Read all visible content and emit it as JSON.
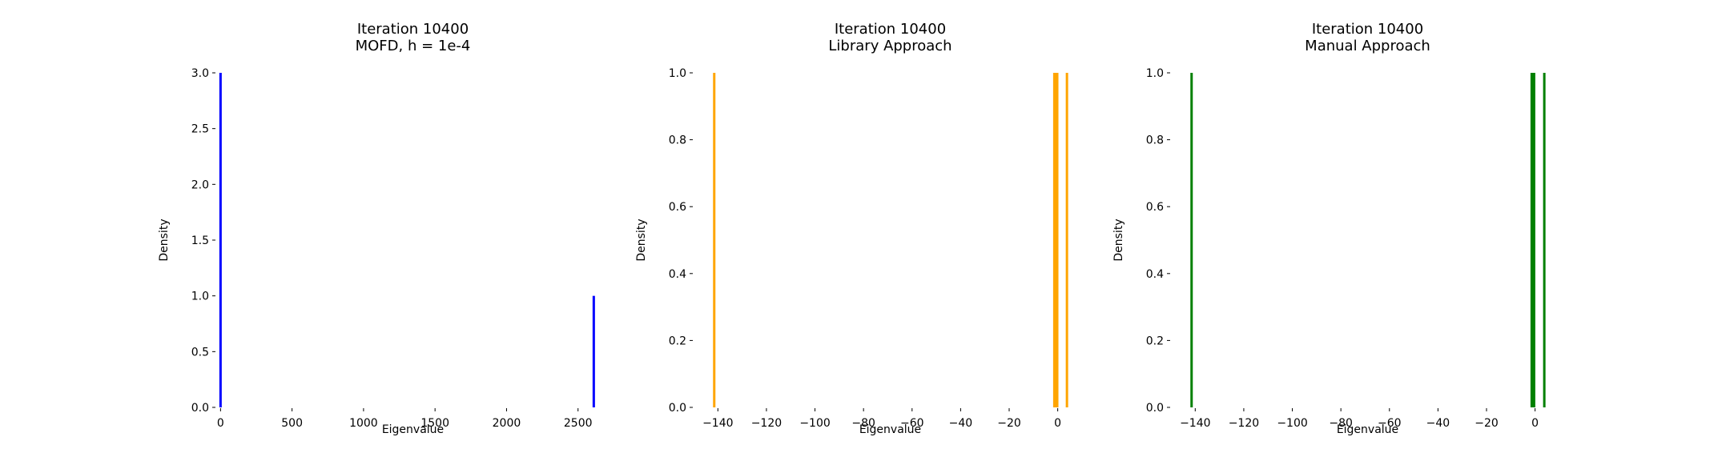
{
  "chart_data": [
    {
      "type": "bar",
      "title": "Iteration 10400\nMOFD, h = 1e-4",
      "xlabel": "Eigenvalue",
      "ylabel": "Density",
      "xlim": [
        -30,
        2720
      ],
      "ylim": [
        0,
        3
      ],
      "xticks": [
        0,
        500,
        1000,
        1500,
        2000,
        2500
      ],
      "xtick_labels": [
        "0",
        "500",
        "1000",
        "1500",
        "2000",
        "2500"
      ],
      "yticks": [
        0,
        0.5,
        1,
        1.5,
        2,
        2.5,
        3
      ],
      "ytick_labels": [
        "0.0",
        "0.5",
        "1.0",
        "1.5",
        "2.0",
        "2.5",
        "3.0"
      ],
      "color": "#0000ff",
      "x": [
        0,
        2610
      ],
      "values": [
        3,
        1
      ],
      "grid": false,
      "legend": "none"
    },
    {
      "type": "bar",
      "title": "Iteration 10400\nLibrary Approach",
      "xlabel": "Eigenvalue",
      "ylabel": "Density",
      "xlim": [
        -150,
        12
      ],
      "ylim": [
        0,
        1
      ],
      "xticks": [
        -140,
        -120,
        -100,
        -80,
        -60,
        -40,
        -20,
        0
      ],
      "xtick_labels": [
        "−140",
        "−120",
        "−100",
        "−80",
        "−60",
        "−40",
        "−20",
        "0"
      ],
      "yticks": [
        0,
        0.2,
        0.4,
        0.6,
        0.8,
        1.0
      ],
      "ytick_labels": [
        "0.0",
        "0.2",
        "0.4",
        "0.6",
        "0.8",
        "1.0"
      ],
      "color": "#ffa500",
      "x": [
        -141.5,
        -1.4,
        -0.7,
        -0.2,
        3.8
      ],
      "values": [
        1,
        1,
        1,
        1,
        1
      ],
      "grid": false,
      "legend": "none"
    },
    {
      "type": "bar",
      "title": "Iteration 10400\nManual Approach",
      "xlabel": "Eigenvalue",
      "ylabel": "Density",
      "xlim": [
        -150,
        12
      ],
      "ylim": [
        0,
        1
      ],
      "xticks": [
        -140,
        -120,
        -100,
        -80,
        -60,
        -40,
        -20,
        0
      ],
      "xtick_labels": [
        "−140",
        "−120",
        "−100",
        "−80",
        "−60",
        "−40",
        "−20",
        "0"
      ],
      "yticks": [
        0,
        0.2,
        0.4,
        0.6,
        0.8,
        1.0
      ],
      "ytick_labels": [
        "0.0",
        "0.2",
        "0.4",
        "0.6",
        "0.8",
        "1.0"
      ],
      "color": "#008000",
      "x": [
        -141.5,
        -1.4,
        -0.9,
        -0.4,
        3.8
      ],
      "values": [
        1,
        1,
        1,
        1,
        1
      ],
      "grid": false,
      "legend": "none"
    }
  ]
}
